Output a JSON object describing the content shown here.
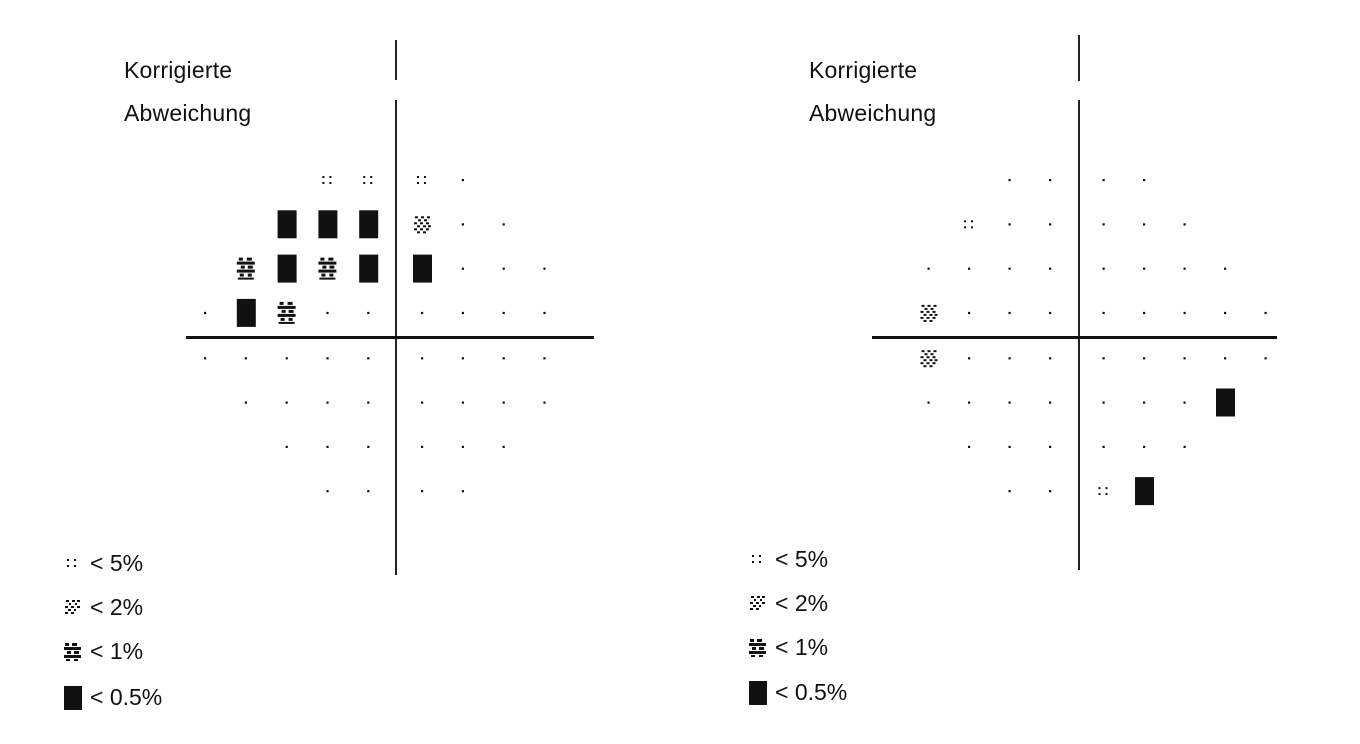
{
  "legend": {
    "p5": "< 5%",
    "p2": "< 2%",
    "p1": "< 1%",
    "p05": "< 0.5%"
  },
  "colors": {
    "ink": "#111111",
    "background": "#ffffff"
  },
  "symbols": {
    "dot": "normal",
    "p5": "dotted-pattern",
    "p2": "light-checker-pattern",
    "p1": "dense-checker-pattern",
    "p05": "solid-black-block"
  },
  "panels": [
    {
      "title_line1": "Korrigierte",
      "title_line2": "Abweichung",
      "grid": [
        [
          "",
          "",
          "",
          "p5",
          "p5",
          "p5",
          "dot",
          "",
          "",
          ""
        ],
        [
          "",
          "",
          "p05",
          "p05",
          "p05",
          "p2",
          "dot",
          "dot",
          "",
          ""
        ],
        [
          "",
          "p1",
          "p05",
          "p1",
          "p05",
          "p05",
          "dot",
          "dot",
          "dot",
          ""
        ],
        [
          "dot",
          "p05",
          "p1",
          "dot",
          "dot",
          "dot",
          "dot",
          "dot",
          "dot",
          ""
        ],
        [
          "dot",
          "dot",
          "dot",
          "dot",
          "dot",
          "dot",
          "dot",
          "dot",
          "dot",
          ""
        ],
        [
          "",
          "dot",
          "dot",
          "dot",
          "dot",
          "dot",
          "dot",
          "dot",
          "dot",
          ""
        ],
        [
          "",
          "",
          "dot",
          "dot",
          "dot",
          "dot",
          "dot",
          "dot",
          "",
          ""
        ],
        [
          "",
          "",
          "",
          "dot",
          "dot",
          "dot",
          "dot",
          "",
          "",
          ""
        ]
      ]
    },
    {
      "title_line1": "Korrigierte",
      "title_line2": "Abweichung",
      "grid": [
        [
          "",
          "",
          "",
          "dot",
          "dot",
          "dot",
          "dot",
          "",
          "",
          ""
        ],
        [
          "",
          "",
          "p5",
          "dot",
          "dot",
          "dot",
          "dot",
          "dot",
          "",
          ""
        ],
        [
          "",
          "dot",
          "dot",
          "dot",
          "dot",
          "dot",
          "dot",
          "dot",
          "dot",
          ""
        ],
        [
          "",
          "p2",
          "dot",
          "dot",
          "dot",
          "dot",
          "dot",
          "dot",
          "dot",
          "dot"
        ],
        [
          "",
          "p2",
          "dot",
          "dot",
          "dot",
          "dot",
          "dot",
          "dot",
          "dot",
          "dot"
        ],
        [
          "",
          "dot",
          "dot",
          "dot",
          "dot",
          "dot",
          "dot",
          "dot",
          "p05",
          ""
        ],
        [
          "",
          "",
          "dot",
          "dot",
          "dot",
          "dot",
          "dot",
          "dot",
          "",
          ""
        ],
        [
          "",
          "",
          "",
          "dot",
          "dot",
          "p5",
          "p05",
          "",
          "",
          ""
        ]
      ]
    }
  ]
}
